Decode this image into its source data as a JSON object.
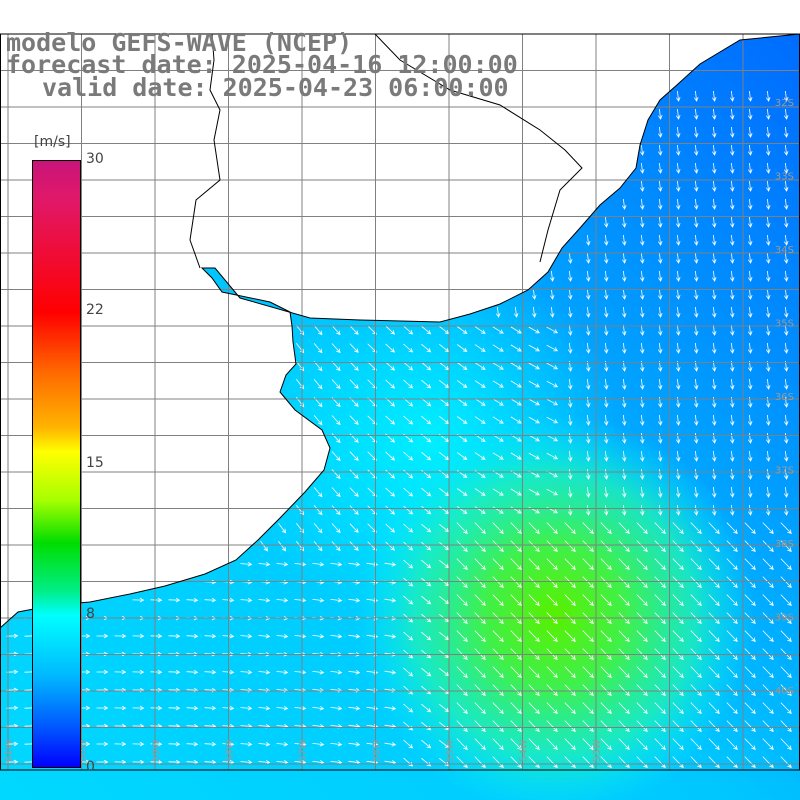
{
  "title": {
    "line1": "modelo GEFS-WAVE (NCEP)",
    "line2": "forecast date: 2025-04-16 12:00:00",
    "line3": "valid date: 2025-04-23 06:00:00"
  },
  "colorbar": {
    "unit": "[m/s]",
    "ticks": [
      "30",
      "22",
      "15",
      "8",
      "0"
    ],
    "range": [
      0,
      30
    ]
  },
  "axis_labels": {
    "longitudes": [
      "61W",
      "60W",
      "59W",
      "58W",
      "57W",
      "56W",
      "55W",
      "54W",
      "53W"
    ],
    "latitudes": [
      "32S",
      "33S",
      "34S",
      "35S",
      "36S",
      "37S",
      "38S",
      "39S",
      "40S"
    ]
  },
  "colors": {
    "land": "#ffffff",
    "grid": "#808080",
    "coast": "#000000",
    "arrows": "#ffffff",
    "titles": "#7a7a7a"
  },
  "map_data": {
    "field": "wind speed",
    "units": "m/s",
    "region": "Rio de la Plata / Uruguay / Buenos Aires coast"
  }
}
